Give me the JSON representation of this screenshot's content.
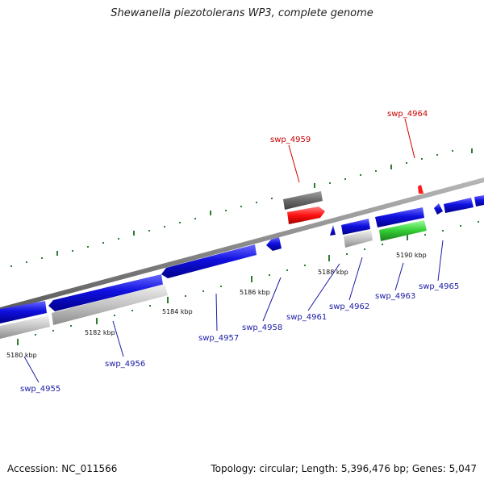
{
  "title": "Shewanella piezotolerans WP3, complete genome",
  "footer": {
    "accession": "Accession: NC_011566",
    "summary": "Topology: circular; Length: 5,396,476 bp; Genes: 5,047"
  },
  "colors": {
    "backbone": "#8a8a8a",
    "tick": "#2e7d32",
    "forward_gene": "#1414e6",
    "pseudo_gene": "#c8c8c8",
    "highlight_gene": "#ff1a1a",
    "dark_gene": "#707070",
    "rna_gene": "#33cc33",
    "label_blue": "#1a1aa6",
    "label_red": "#cc0000"
  },
  "scale": {
    "unit": "kbp",
    "labels": [
      "5180 kbp",
      "5182 kbp",
      "5184 kbp",
      "5186 kbp",
      "5188 kbp",
      "5190 kbp"
    ]
  },
  "genes": [
    {
      "name": "swp_4955",
      "color": "label_blue"
    },
    {
      "name": "swp_4956",
      "color": "label_blue"
    },
    {
      "name": "swp_4957",
      "color": "label_blue"
    },
    {
      "name": "swp_4958",
      "color": "label_blue"
    },
    {
      "name": "swp_4959",
      "color": "label_red"
    },
    {
      "name": "swp_4961",
      "color": "label_blue"
    },
    {
      "name": "swp_4962",
      "color": "label_blue"
    },
    {
      "name": "swp_4963",
      "color": "label_blue"
    },
    {
      "name": "swp_4964",
      "color": "label_red"
    },
    {
      "name": "swp_4965",
      "color": "label_blue"
    }
  ]
}
